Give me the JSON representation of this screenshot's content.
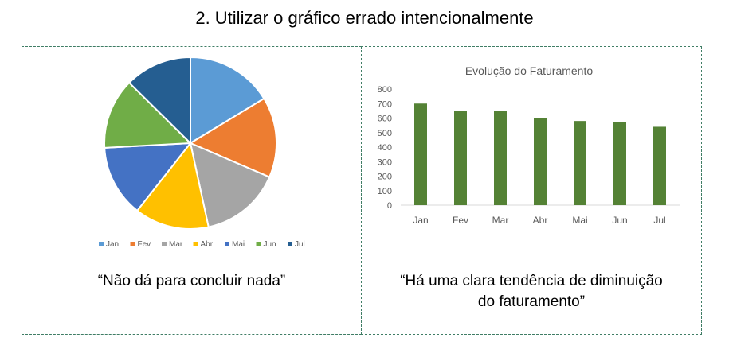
{
  "page": {
    "title": "2. Utilizar o gráfico errado intencionalmente"
  },
  "left_panel": {
    "caption": "“Não dá para concluir nada”"
  },
  "right_panel": {
    "caption_line1": "“Há uma clara tendência de diminuição",
    "caption_line2": "do faturamento”"
  },
  "chart_data": [
    {
      "type": "pie",
      "title": "",
      "categories": [
        "Jan",
        "Fev",
        "Mar",
        "Abr",
        "Mai",
        "Jun",
        "Jul"
      ],
      "values": [
        700,
        650,
        650,
        600,
        580,
        570,
        540
      ],
      "colors": [
        "#5b9bd5",
        "#ed7d31",
        "#a5a5a5",
        "#ffc000",
        "#4472c4",
        "#70ad47",
        "#255e91"
      ],
      "legend": "bottom"
    },
    {
      "type": "bar",
      "title": "Evolução do Faturamento",
      "categories": [
        "Jan",
        "Fev",
        "Mar",
        "Abr",
        "Mai",
        "Jun",
        "Jul"
      ],
      "values": [
        700,
        650,
        650,
        600,
        580,
        570,
        540
      ],
      "ylim": [
        0,
        800
      ],
      "yticks": [
        0,
        100,
        200,
        300,
        400,
        500,
        600,
        700,
        800
      ],
      "bar_color": "#548235",
      "grid": false
    }
  ]
}
